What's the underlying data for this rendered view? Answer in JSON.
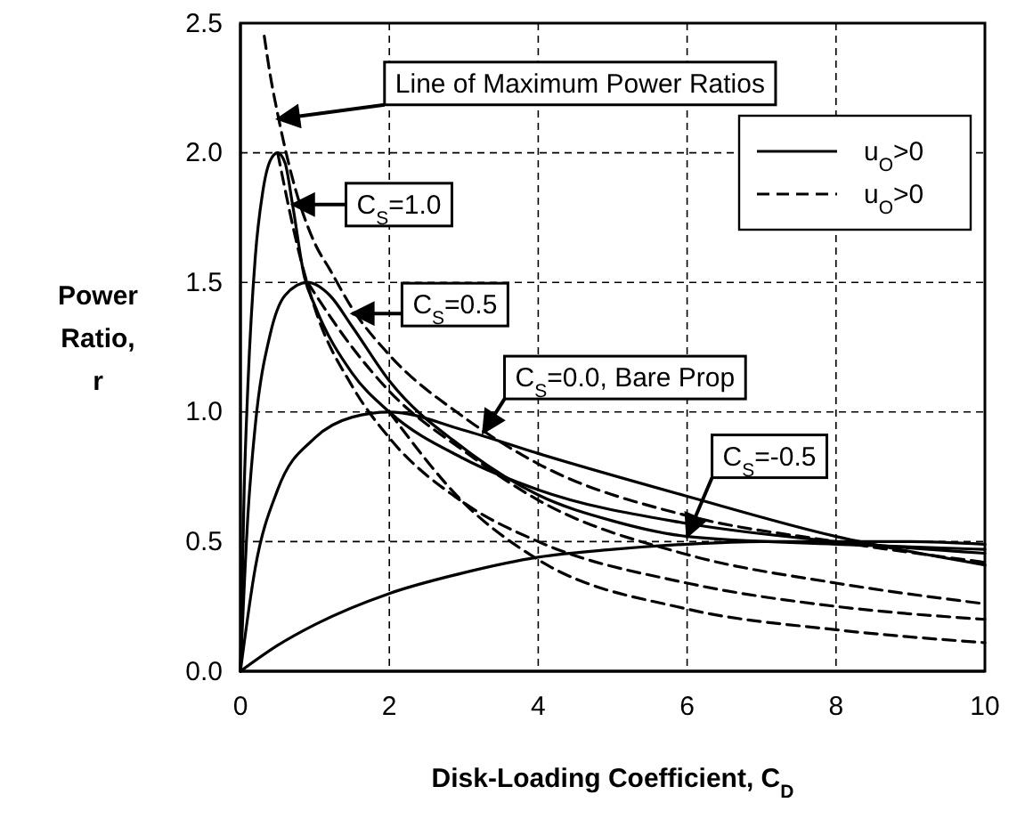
{
  "chart_data": {
    "type": "line",
    "xlabel": "Disk-Loading Coefficient, C$_{D}$",
    "ylabel": "Power Ratio, r",
    "xlim": [
      0,
      10
    ],
    "ylim": [
      0,
      2.5
    ],
    "xticks": [
      0,
      2,
      4,
      6,
      8,
      10
    ],
    "yticks": [
      {
        "value": 0,
        "label": "0.0"
      },
      {
        "value": 0.5,
        "label": "0.5"
      },
      {
        "value": 1,
        "label": "1.0"
      },
      {
        "value": 1.5,
        "label": "1.5"
      },
      {
        "value": 2,
        "label": "2.0"
      },
      {
        "value": 2.5,
        "label": "2.5"
      }
    ],
    "grid": true,
    "legend": "top right",
    "marker": "none",
    "series": [
      {
        "name": "u$_{O}$>0",
        "color": "#000000",
        "line_style": "solid",
        "x": [
          0,
          0.05,
          0.1,
          0.2,
          0.3,
          0.4,
          0.5,
          0.6,
          0.7,
          0.86,
          1,
          1.5,
          2,
          3,
          4,
          6,
          8,
          10
        ],
        "values": [
          0,
          0.7,
          1.1,
          1.6,
          1.85,
          1.97,
          2.0,
          1.96,
          1.8,
          1.52,
          1.41,
          1.15,
          1.0,
          0.82,
          0.7,
          0.57,
          0.5,
          0.455
        ]
      },
      {
        "color": "#000000",
        "line_style": "solid",
        "x": [
          0,
          0.1,
          0.2,
          0.4,
          0.6,
          0.9,
          1.2,
          1.5,
          2,
          3,
          4,
          5,
          6,
          8,
          10
        ],
        "values": [
          0,
          0.6,
          0.95,
          1.3,
          1.45,
          1.5,
          1.45,
          1.33,
          1.12,
          0.86,
          0.68,
          0.58,
          0.52,
          0.49,
          0.47
        ]
      },
      {
        "color": "#000000",
        "line_style": "solid",
        "x": [
          0,
          0.2,
          0.5,
          1,
          1.5,
          2,
          3,
          4,
          6,
          8,
          10
        ],
        "values": [
          0,
          0.4,
          0.7,
          0.9,
          0.98,
          1.0,
          0.93,
          0.84,
          0.675,
          0.52,
          0.41
        ]
      },
      {
        "color": "#000000",
        "line_style": "solid",
        "x": [
          0,
          0.5,
          1,
          2,
          3,
          4,
          5,
          6,
          7,
          8,
          9,
          10
        ],
        "values": [
          0,
          0.1,
          0.18,
          0.3,
          0.38,
          0.44,
          0.47,
          0.49,
          0.5,
          0.5,
          0.5,
          0.49
        ]
      },
      {
        "name": "u$_{O}$>0",
        "color": "#000000",
        "line_style": "dashed",
        "x": [
          0.32,
          0.4,
          0.5,
          0.7,
          1,
          1.2,
          1.5,
          2,
          3,
          4,
          6,
          8,
          10
        ],
        "values": [
          2.45,
          2.3,
          2.15,
          1.9,
          1.65,
          1.55,
          1.4,
          1.22,
          0.98,
          0.8,
          0.6,
          0.5,
          0.42
        ]
      },
      {
        "color": "#000000",
        "line_style": "dashed",
        "x": [
          0.5,
          0.8,
          1,
          1.5,
          2,
          3,
          4,
          6,
          8,
          10
        ],
        "values": [
          2.0,
          1.6,
          1.4,
          1.1,
          0.9,
          0.65,
          0.5,
          0.34,
          0.25,
          0.2
        ]
      },
      {
        "color": "#000000",
        "line_style": "dashed",
        "x": [
          0.9,
          1.5,
          2,
          3,
          4,
          6,
          8,
          10
        ],
        "values": [
          1.5,
          1.25,
          1.08,
          0.85,
          0.66,
          0.45,
          0.34,
          0.26
        ]
      },
      {
        "color": "#000000",
        "line_style": "dashed",
        "x": [
          2,
          3,
          4,
          6,
          8,
          10
        ],
        "values": [
          1.0,
          0.65,
          0.43,
          0.24,
          0.16,
          0.11
        ]
      }
    ],
    "annotations": [
      {
        "text": "Line of Maximum Power Ratios",
        "x": 0.5,
        "y": 2.13
      },
      {
        "text": "C$_{S}$=1.0",
        "x": 0.7,
        "y": 1.8
      },
      {
        "text": "C$_{S}$=0.5",
        "x": 1.5,
        "y": 1.38
      },
      {
        "text": "C$_{S}$=0.0, Bare Prop",
        "x": 3.26,
        "y": 0.92
      },
      {
        "text": "C$_{S}$=-0.5",
        "x": 6.0,
        "y": 0.52
      }
    ]
  }
}
